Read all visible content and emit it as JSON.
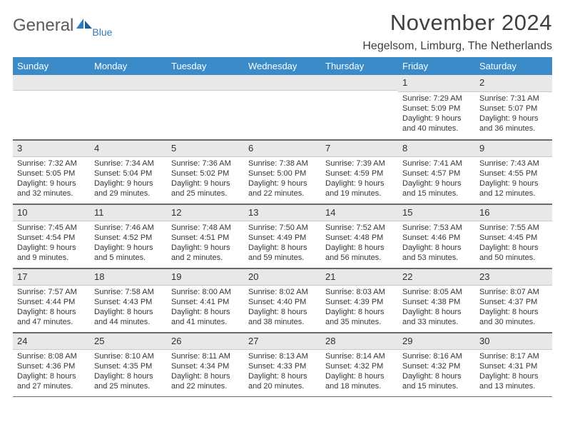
{
  "logo": {
    "word1": "General",
    "word2": "Blue"
  },
  "title": "November 2024",
  "location": "Hegelsom, Limburg, The Netherlands",
  "colors": {
    "header_bg": "#3b8bc9",
    "header_text": "#ffffff",
    "daynum_bg": "#e8e8e8",
    "border": "#6a6a6a",
    "text": "#353535",
    "logo_gray": "#5a5a5a",
    "logo_blue": "#2f7ac0"
  },
  "day_headers": [
    "Sunday",
    "Monday",
    "Tuesday",
    "Wednesday",
    "Thursday",
    "Friday",
    "Saturday"
  ],
  "weeks": [
    [
      null,
      null,
      null,
      null,
      null,
      {
        "n": "1",
        "sunrise": "Sunrise: 7:29 AM",
        "sunset": "Sunset: 5:09 PM",
        "day1": "Daylight: 9 hours",
        "day2": "and 40 minutes."
      },
      {
        "n": "2",
        "sunrise": "Sunrise: 7:31 AM",
        "sunset": "Sunset: 5:07 PM",
        "day1": "Daylight: 9 hours",
        "day2": "and 36 minutes."
      }
    ],
    [
      {
        "n": "3",
        "sunrise": "Sunrise: 7:32 AM",
        "sunset": "Sunset: 5:05 PM",
        "day1": "Daylight: 9 hours",
        "day2": "and 32 minutes."
      },
      {
        "n": "4",
        "sunrise": "Sunrise: 7:34 AM",
        "sunset": "Sunset: 5:04 PM",
        "day1": "Daylight: 9 hours",
        "day2": "and 29 minutes."
      },
      {
        "n": "5",
        "sunrise": "Sunrise: 7:36 AM",
        "sunset": "Sunset: 5:02 PM",
        "day1": "Daylight: 9 hours",
        "day2": "and 25 minutes."
      },
      {
        "n": "6",
        "sunrise": "Sunrise: 7:38 AM",
        "sunset": "Sunset: 5:00 PM",
        "day1": "Daylight: 9 hours",
        "day2": "and 22 minutes."
      },
      {
        "n": "7",
        "sunrise": "Sunrise: 7:39 AM",
        "sunset": "Sunset: 4:59 PM",
        "day1": "Daylight: 9 hours",
        "day2": "and 19 minutes."
      },
      {
        "n": "8",
        "sunrise": "Sunrise: 7:41 AM",
        "sunset": "Sunset: 4:57 PM",
        "day1": "Daylight: 9 hours",
        "day2": "and 15 minutes."
      },
      {
        "n": "9",
        "sunrise": "Sunrise: 7:43 AM",
        "sunset": "Sunset: 4:55 PM",
        "day1": "Daylight: 9 hours",
        "day2": "and 12 minutes."
      }
    ],
    [
      {
        "n": "10",
        "sunrise": "Sunrise: 7:45 AM",
        "sunset": "Sunset: 4:54 PM",
        "day1": "Daylight: 9 hours",
        "day2": "and 9 minutes."
      },
      {
        "n": "11",
        "sunrise": "Sunrise: 7:46 AM",
        "sunset": "Sunset: 4:52 PM",
        "day1": "Daylight: 9 hours",
        "day2": "and 5 minutes."
      },
      {
        "n": "12",
        "sunrise": "Sunrise: 7:48 AM",
        "sunset": "Sunset: 4:51 PM",
        "day1": "Daylight: 9 hours",
        "day2": "and 2 minutes."
      },
      {
        "n": "13",
        "sunrise": "Sunrise: 7:50 AM",
        "sunset": "Sunset: 4:49 PM",
        "day1": "Daylight: 8 hours",
        "day2": "and 59 minutes."
      },
      {
        "n": "14",
        "sunrise": "Sunrise: 7:52 AM",
        "sunset": "Sunset: 4:48 PM",
        "day1": "Daylight: 8 hours",
        "day2": "and 56 minutes."
      },
      {
        "n": "15",
        "sunrise": "Sunrise: 7:53 AM",
        "sunset": "Sunset: 4:46 PM",
        "day1": "Daylight: 8 hours",
        "day2": "and 53 minutes."
      },
      {
        "n": "16",
        "sunrise": "Sunrise: 7:55 AM",
        "sunset": "Sunset: 4:45 PM",
        "day1": "Daylight: 8 hours",
        "day2": "and 50 minutes."
      }
    ],
    [
      {
        "n": "17",
        "sunrise": "Sunrise: 7:57 AM",
        "sunset": "Sunset: 4:44 PM",
        "day1": "Daylight: 8 hours",
        "day2": "and 47 minutes."
      },
      {
        "n": "18",
        "sunrise": "Sunrise: 7:58 AM",
        "sunset": "Sunset: 4:43 PM",
        "day1": "Daylight: 8 hours",
        "day2": "and 44 minutes."
      },
      {
        "n": "19",
        "sunrise": "Sunrise: 8:00 AM",
        "sunset": "Sunset: 4:41 PM",
        "day1": "Daylight: 8 hours",
        "day2": "and 41 minutes."
      },
      {
        "n": "20",
        "sunrise": "Sunrise: 8:02 AM",
        "sunset": "Sunset: 4:40 PM",
        "day1": "Daylight: 8 hours",
        "day2": "and 38 minutes."
      },
      {
        "n": "21",
        "sunrise": "Sunrise: 8:03 AM",
        "sunset": "Sunset: 4:39 PM",
        "day1": "Daylight: 8 hours",
        "day2": "and 35 minutes."
      },
      {
        "n": "22",
        "sunrise": "Sunrise: 8:05 AM",
        "sunset": "Sunset: 4:38 PM",
        "day1": "Daylight: 8 hours",
        "day2": "and 33 minutes."
      },
      {
        "n": "23",
        "sunrise": "Sunrise: 8:07 AM",
        "sunset": "Sunset: 4:37 PM",
        "day1": "Daylight: 8 hours",
        "day2": "and 30 minutes."
      }
    ],
    [
      {
        "n": "24",
        "sunrise": "Sunrise: 8:08 AM",
        "sunset": "Sunset: 4:36 PM",
        "day1": "Daylight: 8 hours",
        "day2": "and 27 minutes."
      },
      {
        "n": "25",
        "sunrise": "Sunrise: 8:10 AM",
        "sunset": "Sunset: 4:35 PM",
        "day1": "Daylight: 8 hours",
        "day2": "and 25 minutes."
      },
      {
        "n": "26",
        "sunrise": "Sunrise: 8:11 AM",
        "sunset": "Sunset: 4:34 PM",
        "day1": "Daylight: 8 hours",
        "day2": "and 22 minutes."
      },
      {
        "n": "27",
        "sunrise": "Sunrise: 8:13 AM",
        "sunset": "Sunset: 4:33 PM",
        "day1": "Daylight: 8 hours",
        "day2": "and 20 minutes."
      },
      {
        "n": "28",
        "sunrise": "Sunrise: 8:14 AM",
        "sunset": "Sunset: 4:32 PM",
        "day1": "Daylight: 8 hours",
        "day2": "and 18 minutes."
      },
      {
        "n": "29",
        "sunrise": "Sunrise: 8:16 AM",
        "sunset": "Sunset: 4:32 PM",
        "day1": "Daylight: 8 hours",
        "day2": "and 15 minutes."
      },
      {
        "n": "30",
        "sunrise": "Sunrise: 8:17 AM",
        "sunset": "Sunset: 4:31 PM",
        "day1": "Daylight: 8 hours",
        "day2": "and 13 minutes."
      }
    ]
  ]
}
